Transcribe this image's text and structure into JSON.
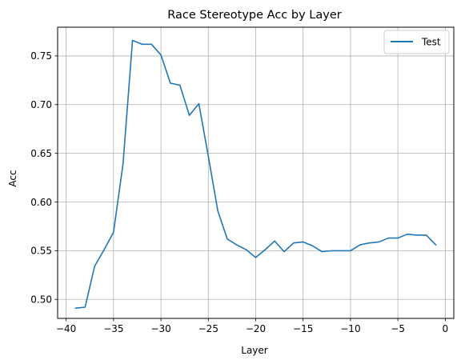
{
  "chart_data": {
    "type": "line",
    "title": "Race Stereotype Acc by Layer",
    "xlabel": "Layer",
    "ylabel": "Acc",
    "xlim": [
      -40.9,
      0.9
    ],
    "ylim": [
      0.4805,
      0.7795
    ],
    "xticks": [
      -40,
      -35,
      -30,
      -25,
      -20,
      -15,
      -10,
      -5,
      0
    ],
    "xtick_labels": [
      "−40",
      "−35",
      "−30",
      "−25",
      "−20",
      "−15",
      "−10",
      "−5",
      "0"
    ],
    "yticks": [
      0.5,
      0.55,
      0.6,
      0.65,
      0.7,
      0.75
    ],
    "ytick_labels": [
      "0.50",
      "0.55",
      "0.60",
      "0.65",
      "0.70",
      "0.75"
    ],
    "grid": true,
    "legend_position": "upper-right",
    "series": [
      {
        "name": "Test",
        "color": "#1f77b4",
        "x": [
          -39,
          -38,
          -37,
          -36,
          -35,
          -34,
          -33,
          -32,
          -31,
          -30,
          -29,
          -28,
          -27,
          -26,
          -25,
          -24,
          -23,
          -22,
          -21,
          -20,
          -19,
          -18,
          -17,
          -16,
          -15,
          -14,
          -13,
          -12,
          -11,
          -10,
          -9,
          -8,
          -7,
          -6,
          -5,
          -4,
          -3,
          -2,
          -1
        ],
        "y": [
          0.491,
          0.492,
          0.534,
          0.551,
          0.569,
          0.639,
          0.766,
          0.762,
          0.762,
          0.751,
          0.722,
          0.72,
          0.689,
          0.701,
          0.647,
          0.591,
          0.562,
          0.556,
          0.551,
          0.543,
          0.551,
          0.56,
          0.549,
          0.558,
          0.559,
          0.555,
          0.549,
          0.55,
          0.55,
          0.55,
          0.556,
          0.558,
          0.559,
          0.563,
          0.563,
          0.567,
          0.566,
          0.566,
          0.556
        ]
      }
    ]
  }
}
